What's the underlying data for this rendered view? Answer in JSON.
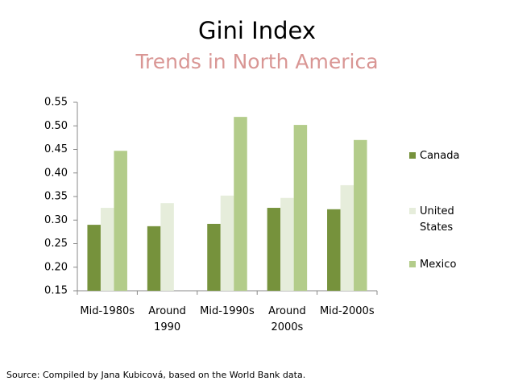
{
  "chart_data": {
    "type": "bar",
    "title": "Gini Index",
    "subtitle": "Trends in North America",
    "categories": [
      "Mid-1980s",
      "Around 1990",
      "Mid-1990s",
      "Around 2000s",
      "Mid-2000s"
    ],
    "series": [
      {
        "name": "Canada",
        "color": "#76923c",
        "values": [
          0.29,
          0.287,
          0.292,
          0.326,
          0.323
        ]
      },
      {
        "name": "United States",
        "color": "#e6eddb",
        "values": [
          0.326,
          0.336,
          0.352,
          0.347,
          0.374
        ]
      },
      {
        "name": "Mexico",
        "color": "#b3cc8a",
        "values": [
          0.447,
          null,
          0.519,
          0.502,
          0.47
        ]
      }
    ],
    "ylim": [
      0.15,
      0.55
    ],
    "yticks": [
      0.15,
      {
        "value": 0.2,
        "label": "0.20"
      },
      0.25,
      {
        "value": 0.3,
        "label": "0.30"
      },
      0.35,
      {
        "value": 0.4,
        "label": "0.40"
      },
      0.45,
      {
        "value": 0.5,
        "label": "0.50"
      },
      0.55
    ],
    "grid": false,
    "legend": "right",
    "source": "Source: Compiled by Jana Kubicová, based on the World Bank data."
  }
}
